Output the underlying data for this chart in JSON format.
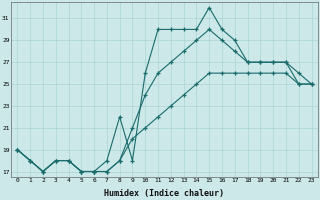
{
  "xlabel": "Humidex (Indice chaleur)",
  "x": [
    0,
    1,
    2,
    3,
    4,
    5,
    6,
    7,
    8,
    9,
    10,
    11,
    12,
    13,
    14,
    15,
    16,
    17,
    18,
    19,
    20,
    21,
    22,
    23
  ],
  "line1": [
    19,
    18,
    17,
    18,
    18,
    17,
    17,
    18,
    22,
    18,
    26,
    30,
    30,
    30,
    30,
    32,
    30,
    29,
    27,
    27,
    27,
    27,
    25,
    25
  ],
  "line2": [
    19,
    18,
    17,
    18,
    18,
    17,
    17,
    17,
    18,
    21,
    24,
    26,
    27,
    28,
    29,
    30,
    29,
    28,
    27,
    27,
    27,
    27,
    26,
    25
  ],
  "line3": [
    19,
    18,
    17,
    18,
    18,
    17,
    17,
    17,
    18,
    20,
    21,
    22,
    23,
    24,
    25,
    26,
    26,
    26,
    26,
    26,
    26,
    26,
    25,
    25
  ],
  "bg_color": "#cce8e8",
  "grid_color": "#aad4d4",
  "line_color": "#1a6b6b",
  "ylim": [
    16.5,
    32.5
  ],
  "yticks": [
    17,
    19,
    21,
    23,
    25,
    27,
    29,
    31
  ],
  "xticks": [
    0,
    1,
    2,
    3,
    4,
    5,
    6,
    7,
    8,
    9,
    10,
    11,
    12,
    13,
    14,
    15,
    16,
    17,
    18,
    19,
    20,
    21,
    22,
    23
  ],
  "xlabel_fontsize": 6,
  "tick_fontsize": 4.5
}
